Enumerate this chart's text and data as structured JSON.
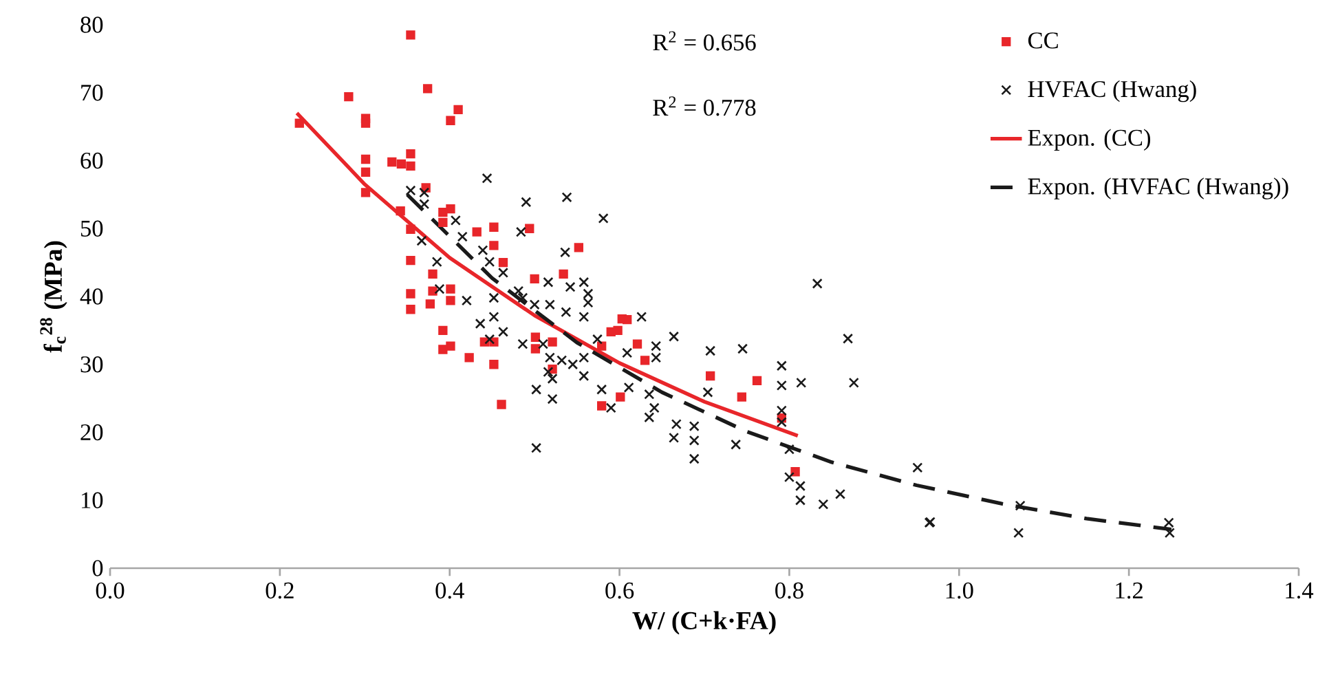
{
  "chart_data": {
    "type": "scatter",
    "xlabel": "W/ (C+k·FA)",
    "ylabel": "f$_{c}$$^{28}$ (MPa)",
    "xlim": [
      0,
      1.4
    ],
    "ylim": [
      0,
      80
    ],
    "xticks": [
      {
        "value": 0,
        "label": "0.0"
      },
      0.2,
      0.4,
      0.6,
      0.8,
      {
        "value": 1,
        "label": "1.0"
      },
      1.2,
      1.4
    ],
    "yticks": [
      0,
      10,
      20,
      30,
      40,
      50,
      60,
      70,
      80
    ],
    "legend": "top right",
    "annotations": [
      "R$^{2}$ = 0.656",
      "R$^{2}$ = 0.778"
    ],
    "series": [
      {
        "name": "CC",
        "marker": "square",
        "color": "#e8262a",
        "x": [
          0.223,
          0.281,
          0.301,
          0.301,
          0.301,
          0.301,
          0.301,
          0.332,
          0.343,
          0.342,
          0.354,
          0.354,
          0.354,
          0.354,
          0.354,
          0.354,
          0.354,
          0.372,
          0.374,
          0.377,
          0.38,
          0.38,
          0.392,
          0.392,
          0.392,
          0.392,
          0.41,
          0.401,
          0.401,
          0.401,
          0.401,
          0.401,
          0.423,
          0.432,
          0.441,
          0.452,
          0.452,
          0.452,
          0.452,
          0.461,
          0.463,
          0.494,
          0.5,
          0.501,
          0.501,
          0.521,
          0.521,
          0.534,
          0.552,
          0.579,
          0.579,
          0.59,
          0.598,
          0.601,
          0.603,
          0.609,
          0.621,
          0.63,
          0.707,
          0.744,
          0.762,
          0.791,
          0.807
        ],
        "values": [
          65.5,
          69.4,
          66.2,
          65.5,
          60.2,
          58.3,
          55.3,
          59.8,
          59.5,
          52.6,
          78.5,
          61.0,
          59.2,
          49.9,
          45.3,
          40.4,
          38.1,
          56.0,
          70.6,
          38.9,
          40.8,
          43.3,
          52.4,
          50.9,
          35.0,
          32.2,
          67.5,
          65.9,
          52.9,
          41.1,
          39.4,
          32.7,
          31.0,
          49.5,
          33.3,
          50.2,
          47.5,
          33.3,
          30.0,
          24.1,
          45.0,
          50.0,
          42.6,
          34.0,
          32.3,
          33.3,
          29.3,
          43.3,
          47.2,
          32.7,
          23.9,
          34.8,
          35.0,
          25.2,
          36.7,
          36.6,
          33.0,
          30.6,
          28.3,
          25.2,
          27.6,
          22.1,
          14.2
        ]
      },
      {
        "name": "HVFAC (Hwang)",
        "marker": "cross",
        "color": "#1a1a1a",
        "x": [
          0.444,
          0.49,
          0.538,
          0.581,
          0.354,
          0.37,
          0.37,
          0.407,
          0.415,
          0.484,
          0.439,
          0.385,
          0.367,
          0.388,
          0.42,
          0.447,
          0.463,
          0.536,
          0.516,
          0.542,
          0.558,
          0.563,
          0.452,
          0.436,
          0.452,
          0.486,
          0.5,
          0.518,
          0.481,
          0.463,
          0.447,
          0.486,
          0.51,
          0.518,
          0.532,
          0.516,
          0.521,
          0.502,
          0.521,
          0.502,
          0.537,
          0.558,
          0.558,
          0.558,
          0.545,
          0.574,
          0.579,
          0.59,
          0.563,
          0.626,
          0.609,
          0.643,
          0.664,
          0.643,
          0.611,
          0.635,
          0.641,
          0.635,
          0.667,
          0.664,
          0.688,
          0.688,
          0.688,
          0.704,
          0.707,
          0.745,
          0.737,
          0.791,
          0.791,
          0.814,
          0.791,
          0.791,
          0.8,
          0.8,
          0.813,
          0.813,
          0.833,
          0.869,
          0.876,
          0.84,
          0.86,
          0.951,
          0.966,
          0.965,
          1.072,
          1.07,
          1.247,
          1.248
        ],
        "values": [
          57.4,
          53.9,
          54.6,
          51.5,
          55.6,
          55.3,
          53.6,
          51.2,
          48.8,
          49.5,
          46.8,
          45.1,
          48.2,
          41.1,
          39.4,
          45.1,
          43.5,
          46.5,
          42.1,
          41.4,
          42.1,
          39.1,
          39.8,
          36.0,
          37.0,
          39.8,
          38.8,
          38.8,
          40.8,
          34.8,
          33.7,
          33.0,
          33.0,
          31.0,
          30.6,
          28.9,
          27.9,
          26.3,
          24.9,
          17.7,
          37.7,
          37.0,
          31.0,
          28.3,
          30.0,
          33.7,
          26.3,
          23.6,
          40.4,
          37.0,
          31.7,
          32.7,
          34.1,
          31.0,
          26.6,
          25.6,
          23.6,
          22.2,
          21.2,
          19.2,
          20.9,
          18.8,
          16.1,
          25.9,
          32.0,
          32.3,
          18.2,
          29.8,
          26.9,
          27.3,
          23.2,
          21.5,
          17.5,
          13.4,
          12.1,
          10.0,
          41.9,
          33.8,
          27.3,
          9.4,
          10.9,
          14.8,
          6.8,
          6.7,
          9.2,
          5.2,
          6.7,
          5.2
        ]
      },
      {
        "name": "Expon. (CC)",
        "type": "line",
        "marker": "none",
        "line_style": "solid",
        "color": "#e8262a",
        "x": [
          0.22,
          0.3,
          0.4,
          0.5,
          0.6,
          0.7,
          0.81
        ],
        "values": [
          67,
          56.5,
          45.7,
          37.2,
          30.2,
          24.5,
          19.5
        ]
      },
      {
        "name": "Expon. (HVFAC (Hwang))",
        "type": "line",
        "marker": "none",
        "line_style": "dashed",
        "color": "#1a1a1a",
        "x": [
          0.35,
          0.45,
          0.55,
          0.65,
          0.75,
          0.85,
          0.95,
          1.05,
          1.15,
          1.25
        ],
        "values": [
          55,
          42.7,
          33.2,
          25.9,
          20.1,
          15.6,
          12.2,
          9.5,
          7.3,
          5.7
        ]
      }
    ]
  }
}
